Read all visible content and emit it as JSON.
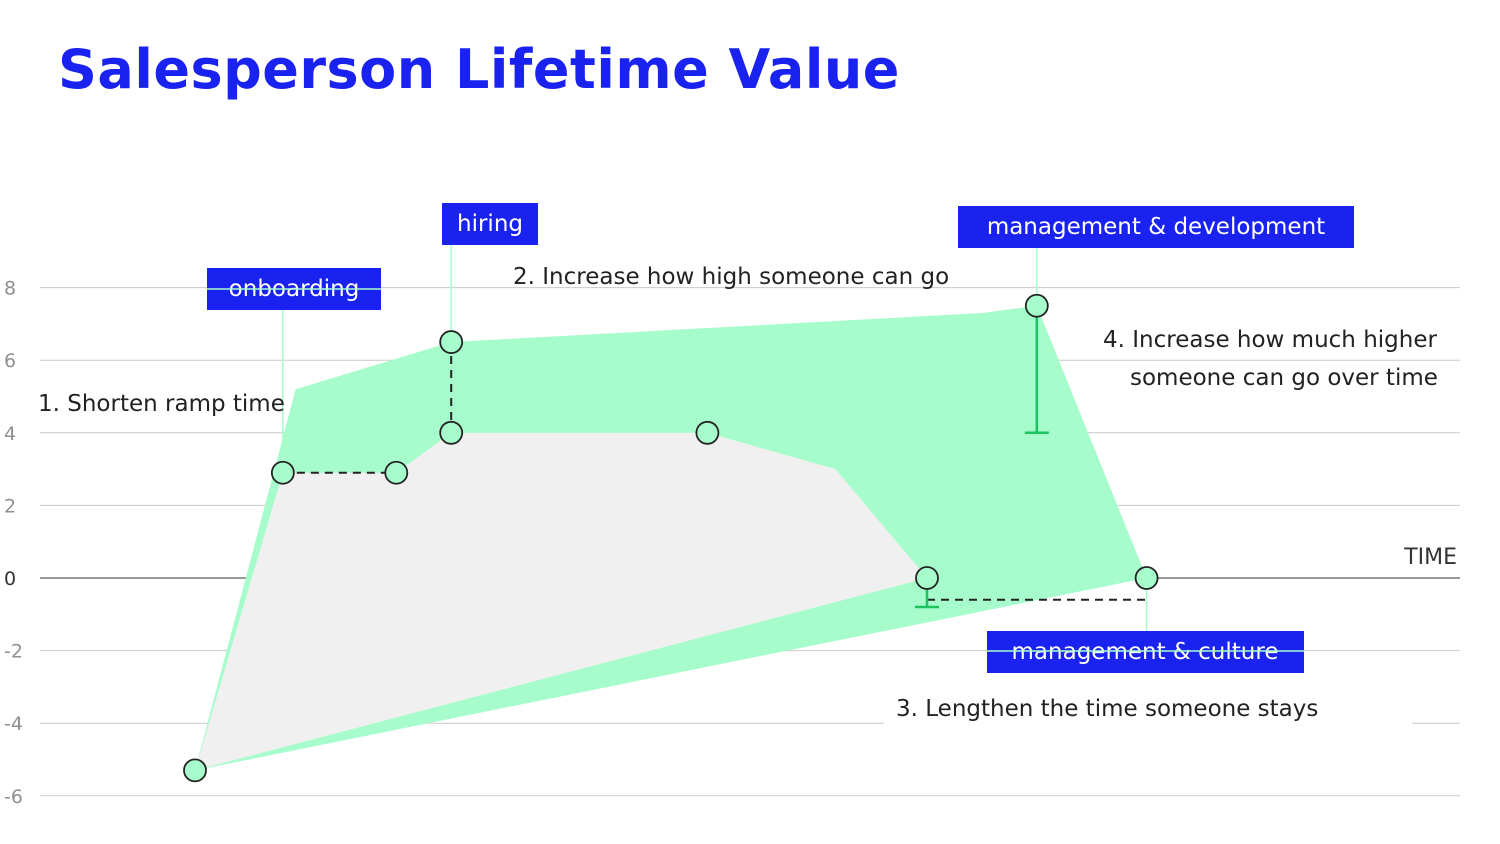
{
  "title": "Salesperson Lifetime Value",
  "colors": {
    "title": "#1a22f0",
    "tag_bg": "#1a22f0",
    "tag_text": "#ffffff",
    "improved_area": "#a6fccb",
    "baseline_area": "#f0f0f0",
    "point_fill": "#a6fccb",
    "bracket": "#1cc460",
    "gridline": "#c9c9c9",
    "zero_line": "#777777"
  },
  "chart_data": {
    "type": "area",
    "title": "Salesperson Lifetime Value",
    "xlabel": "TIME",
    "ylabel": "",
    "ylim": [
      -6,
      8
    ],
    "yticks": [
      8,
      6,
      4,
      2,
      0,
      -2,
      -4,
      -6
    ],
    "grid": true,
    "series": [
      {
        "role": "improved",
        "points": [
          [
            0,
            -5.3
          ],
          [
            0.55,
            5.2
          ],
          [
            1.4,
            6.5
          ],
          [
            4.3,
            7.3
          ],
          [
            4.6,
            7.5
          ],
          [
            5.2,
            0
          ]
        ]
      },
      {
        "role": "baseline",
        "points": [
          [
            0,
            -5.3
          ],
          [
            0.48,
            2.9
          ],
          [
            1.1,
            2.9
          ],
          [
            1.4,
            4.0
          ],
          [
            2.8,
            4.0
          ],
          [
            3.5,
            3.0
          ],
          [
            4.0,
            0
          ]
        ]
      }
    ],
    "markers": [
      {
        "x": 0,
        "y": -5.3
      },
      {
        "x": 0.48,
        "y": 2.9
      },
      {
        "x": 1.1,
        "y": 2.9
      },
      {
        "x": 1.4,
        "y": 6.5
      },
      {
        "x": 1.4,
        "y": 4.0
      },
      {
        "x": 2.8,
        "y": 4.0
      },
      {
        "x": 4.6,
        "y": 7.5
      },
      {
        "x": 4.0,
        "y": 0
      },
      {
        "x": 5.2,
        "y": 0
      }
    ],
    "tags": [
      {
        "label": "onboarding",
        "x": 0.48
      },
      {
        "label": "hiring",
        "x": 1.4
      },
      {
        "label": "management & development",
        "x": 4.6
      },
      {
        "label": "management & culture",
        "x": 5.2
      }
    ],
    "annotations": {
      "ramp": "1.  Shorten ramp time",
      "high": "2. Increase how high someone can go",
      "stays": "3. Lengthen the time someone stays",
      "higher_line1": "4. Increase how much higher",
      "higher_line2": "someone can go over time"
    },
    "brackets": [
      {
        "x": 4.6,
        "y_from": 7.5,
        "y_to": 4.0
      },
      {
        "x": 4.0,
        "y_from": 0,
        "y_to": -0.8
      }
    ]
  }
}
